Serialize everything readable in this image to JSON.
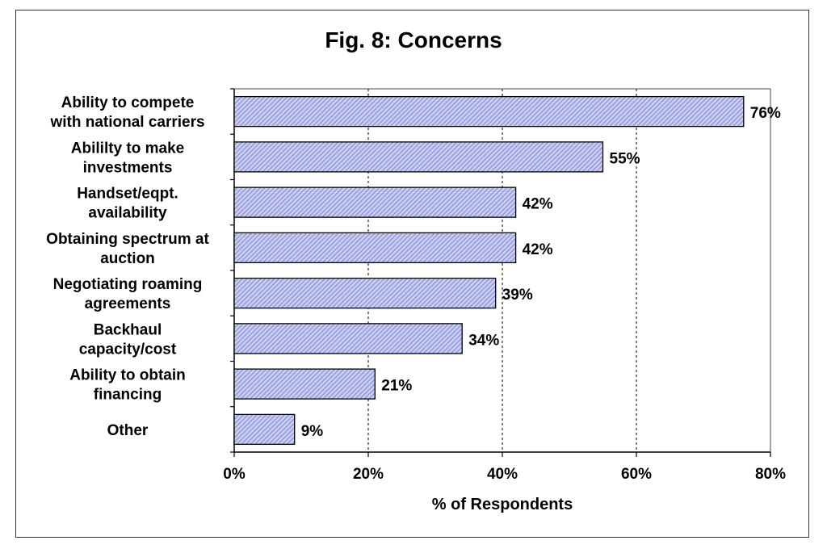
{
  "chart_data": {
    "type": "bar",
    "orientation": "horizontal",
    "title": "Fig. 8: Concerns",
    "xlabel": "% of Respondents",
    "ylabel": "",
    "xlim": [
      0,
      80
    ],
    "x_ticks": [
      "0%",
      "20%",
      "40%",
      "60%",
      "80%"
    ],
    "x_tick_values": [
      0,
      20,
      40,
      60,
      80
    ],
    "grid": "vertical dashed",
    "legend": "none",
    "categories": [
      [
        "Ability to compete",
        "with national carriers"
      ],
      [
        "Abililty to make",
        "investments"
      ],
      [
        "Handset/eqpt.",
        "availability"
      ],
      [
        "Obtaining spectrum at",
        "auction"
      ],
      [
        "Negotiating roaming",
        "agreements"
      ],
      [
        "Backhaul",
        "capacity/cost"
      ],
      [
        "Ability to obtain",
        "financing"
      ],
      [
        "Other"
      ]
    ],
    "values": [
      76,
      55,
      42,
      42,
      39,
      34,
      21,
      9
    ],
    "data_labels": [
      "76%",
      "55%",
      "42%",
      "42%",
      "39%",
      "34%",
      "21%",
      "9%"
    ],
    "colors": {
      "bar_fill": "#c9cdf2",
      "bar_hatch": "#6b72c9",
      "bar_border": "#000000",
      "grid": "#000000",
      "frame": "#333333"
    }
  }
}
